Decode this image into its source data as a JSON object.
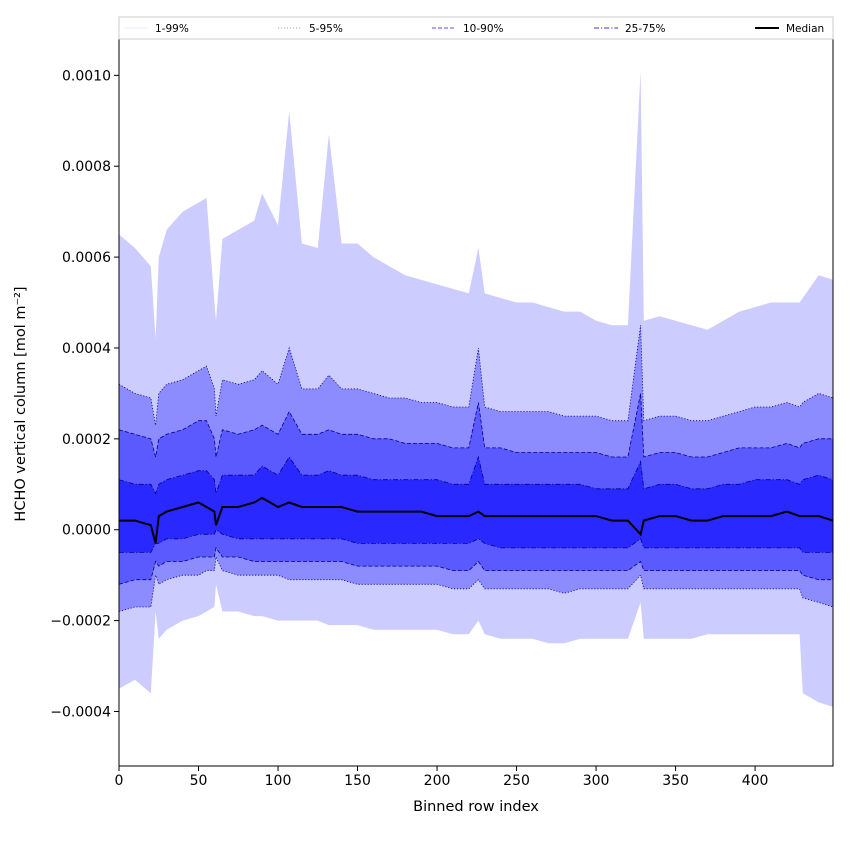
{
  "chart_data": {
    "type": "area",
    "xlabel": "Binned row index",
    "ylabel": "HCHO vertical column [mol m⁻²]",
    "xlim": [
      0,
      449
    ],
    "ylim": [
      -0.00052,
      0.00108
    ],
    "x_ticks": [
      0,
      50,
      100,
      150,
      200,
      250,
      300,
      350,
      400
    ],
    "x_tick_labels": [
      "0",
      "50",
      "100",
      "150",
      "200",
      "250",
      "300",
      "350",
      "400"
    ],
    "y_ticks": [
      -0.0004,
      -0.0002,
      0.0,
      0.0002,
      0.0004,
      0.0006,
      0.0008,
      0.001
    ],
    "y_tick_labels": [
      "−0.0004",
      "−0.0002",
      "0.0000",
      "0.0002",
      "0.0004",
      "0.0006",
      "0.0008",
      "0.0010"
    ],
    "legend_position": "top (above plot, spanning full width)",
    "colors": {
      "band_1_99": "#ccccff",
      "band_5_95": "#8c8cff",
      "band_10_90": "#5a5aff",
      "band_25_75": "#2828ff",
      "line_dark": "#00008b",
      "median": "#000000"
    },
    "x": [
      0,
      10,
      20,
      23,
      25,
      30,
      40,
      50,
      55,
      60,
      61,
      65,
      75,
      85,
      90,
      100,
      107,
      115,
      125,
      132,
      140,
      150,
      160,
      170,
      180,
      190,
      200,
      210,
      220,
      226,
      230,
      240,
      250,
      260,
      270,
      280,
      290,
      300,
      310,
      320,
      328,
      330,
      340,
      350,
      360,
      370,
      380,
      390,
      400,
      410,
      420,
      428,
      430,
      440,
      449
    ],
    "series": [
      {
        "name": "1-99%",
        "line": "none",
        "upper": [
          0.00065,
          0.00062,
          0.00058,
          0.00042,
          0.0006,
          0.00066,
          0.0007,
          0.00072,
          0.00073,
          0.0005,
          0.00046,
          0.00064,
          0.00066,
          0.00068,
          0.00074,
          0.00067,
          0.00092,
          0.00063,
          0.00062,
          0.00087,
          0.00063,
          0.00063,
          0.0006,
          0.00058,
          0.00056,
          0.00055,
          0.00054,
          0.00053,
          0.00052,
          0.00062,
          0.00052,
          0.00051,
          0.0005,
          0.0005,
          0.00049,
          0.00048,
          0.00048,
          0.00046,
          0.00045,
          0.00045,
          0.00101,
          0.00046,
          0.00047,
          0.00046,
          0.00045,
          0.00044,
          0.00046,
          0.00048,
          0.00049,
          0.0005,
          0.0005,
          0.0005,
          0.00051,
          0.00056,
          0.00055
        ],
        "lower": [
          -0.00035,
          -0.00033,
          -0.00036,
          -0.00018,
          -0.00024,
          -0.00022,
          -0.0002,
          -0.00019,
          -0.00018,
          -0.00017,
          -0.00012,
          -0.00018,
          -0.00018,
          -0.00019,
          -0.00019,
          -0.0002,
          -0.0002,
          -0.0002,
          -0.0002,
          -0.00021,
          -0.00021,
          -0.00021,
          -0.00022,
          -0.00022,
          -0.00022,
          -0.00022,
          -0.00022,
          -0.00023,
          -0.00023,
          -0.0002,
          -0.00023,
          -0.00024,
          -0.00024,
          -0.00024,
          -0.00025,
          -0.00025,
          -0.00024,
          -0.00024,
          -0.00024,
          -0.00024,
          -0.00016,
          -0.00024,
          -0.00024,
          -0.00024,
          -0.00024,
          -0.00023,
          -0.00023,
          -0.00023,
          -0.00023,
          -0.00023,
          -0.00023,
          -0.00023,
          -0.00036,
          -0.00038,
          -0.00039
        ]
      },
      {
        "name": "5-95%",
        "line": "dotted",
        "upper": [
          0.00032,
          0.0003,
          0.00029,
          0.00023,
          0.0003,
          0.00032,
          0.00033,
          0.00035,
          0.00036,
          0.00031,
          0.00025,
          0.00033,
          0.00032,
          0.00033,
          0.00035,
          0.00032,
          0.0004,
          0.00031,
          0.00031,
          0.00034,
          0.00031,
          0.00031,
          0.0003,
          0.00029,
          0.00029,
          0.00028,
          0.00028,
          0.00027,
          0.00027,
          0.0004,
          0.00027,
          0.00026,
          0.00026,
          0.00026,
          0.00026,
          0.00025,
          0.00025,
          0.00025,
          0.00024,
          0.00024,
          0.00045,
          0.00024,
          0.00025,
          0.00025,
          0.00024,
          0.00024,
          0.00025,
          0.00026,
          0.00027,
          0.00027,
          0.00028,
          0.00027,
          0.00028,
          0.0003,
          0.00029
        ],
        "lower": [
          -0.00018,
          -0.00017,
          -0.00017,
          -0.0001,
          -0.00012,
          -0.00011,
          -0.0001,
          -0.0001,
          -9e-05,
          -9e-05,
          -6e-05,
          -9e-05,
          -0.0001,
          -0.0001,
          -0.0001,
          -0.0001,
          -0.00011,
          -0.00011,
          -0.00011,
          -0.00011,
          -0.00011,
          -0.00012,
          -0.00012,
          -0.00012,
          -0.00012,
          -0.00012,
          -0.00012,
          -0.00013,
          -0.00013,
          -0.00011,
          -0.00013,
          -0.00013,
          -0.00013,
          -0.00013,
          -0.00013,
          -0.00014,
          -0.00013,
          -0.00013,
          -0.00013,
          -0.00013,
          -0.0001,
          -0.00013,
          -0.00013,
          -0.00013,
          -0.00013,
          -0.00013,
          -0.00013,
          -0.00013,
          -0.00013,
          -0.00013,
          -0.00013,
          -0.00013,
          -0.00015,
          -0.00016,
          -0.00017
        ]
      },
      {
        "name": "10-90%",
        "line": "dashed",
        "upper": [
          0.00022,
          0.00021,
          0.0002,
          0.00016,
          0.0002,
          0.00021,
          0.00022,
          0.00024,
          0.00024,
          0.0002,
          0.00016,
          0.00022,
          0.00021,
          0.00022,
          0.00023,
          0.00021,
          0.00026,
          0.00021,
          0.00021,
          0.00022,
          0.00021,
          0.00021,
          0.0002,
          0.0002,
          0.00019,
          0.00019,
          0.00019,
          0.00018,
          0.00018,
          0.00028,
          0.00018,
          0.00018,
          0.00017,
          0.00017,
          0.00017,
          0.00017,
          0.00017,
          0.00017,
          0.00016,
          0.00016,
          0.0003,
          0.00016,
          0.00017,
          0.00017,
          0.00016,
          0.00016,
          0.00017,
          0.00018,
          0.00018,
          0.00018,
          0.00019,
          0.00018,
          0.00019,
          0.0002,
          0.0002
        ],
        "lower": [
          -0.00012,
          -0.00011,
          -0.00011,
          -7e-05,
          -8e-05,
          -7e-05,
          -7e-05,
          -6e-05,
          -6e-05,
          -6e-05,
          -4e-05,
          -6e-05,
          -6e-05,
          -7e-05,
          -7e-05,
          -7e-05,
          -7e-05,
          -7e-05,
          -7e-05,
          -7e-05,
          -7e-05,
          -8e-05,
          -8e-05,
          -8e-05,
          -8e-05,
          -8e-05,
          -8e-05,
          -9e-05,
          -9e-05,
          -7e-05,
          -9e-05,
          -9e-05,
          -9e-05,
          -9e-05,
          -9e-05,
          -9e-05,
          -9e-05,
          -9e-05,
          -9e-05,
          -9e-05,
          -7e-05,
          -9e-05,
          -9e-05,
          -9e-05,
          -9e-05,
          -9e-05,
          -9e-05,
          -9e-05,
          -9e-05,
          -9e-05,
          -9e-05,
          -9e-05,
          -0.0001,
          -0.00011,
          -0.00011
        ]
      },
      {
        "name": "25-75%",
        "line": "dashdot",
        "upper": [
          0.00011,
          0.0001,
          0.0001,
          8e-05,
          0.0001,
          0.00011,
          0.00012,
          0.00013,
          0.00013,
          0.00011,
          8e-05,
          0.00012,
          0.00012,
          0.00012,
          0.00014,
          0.00012,
          0.00016,
          0.00012,
          0.00012,
          0.00013,
          0.00012,
          0.00012,
          0.00011,
          0.00011,
          0.00011,
          0.00011,
          0.00011,
          0.0001,
          0.0001,
          0.00016,
          0.0001,
          0.0001,
          0.0001,
          0.0001,
          0.0001,
          0.0001,
          0.0001,
          9e-05,
          9e-05,
          9e-05,
          0.00015,
          9e-05,
          0.0001,
          0.0001,
          9e-05,
          9e-05,
          0.0001,
          0.0001,
          0.00011,
          0.00011,
          0.00011,
          0.0001,
          0.00011,
          0.00012,
          0.00011
        ],
        "lower": [
          -5e-05,
          -5e-05,
          -5e-05,
          -3e-05,
          -3e-05,
          -2e-05,
          -2e-05,
          -1e-05,
          -1e-05,
          -1e-05,
          0.0,
          -1e-05,
          -2e-05,
          -2e-05,
          -2e-05,
          -2e-05,
          -2e-05,
          -2e-05,
          -2e-05,
          -2e-05,
          -2e-05,
          -3e-05,
          -3e-05,
          -3e-05,
          -3e-05,
          -3e-05,
          -3e-05,
          -3e-05,
          -3e-05,
          -2e-05,
          -3e-05,
          -4e-05,
          -4e-05,
          -4e-05,
          -4e-05,
          -4e-05,
          -4e-05,
          -4e-05,
          -4e-05,
          -4e-05,
          -2e-05,
          -4e-05,
          -4e-05,
          -4e-05,
          -4e-05,
          -4e-05,
          -4e-05,
          -4e-05,
          -4e-05,
          -4e-05,
          -4e-05,
          -4e-05,
          -5e-05,
          -5e-05,
          -5e-05
        ]
      },
      {
        "name": "Median",
        "line": "solid",
        "values": [
          2e-05,
          2e-05,
          1e-05,
          -3e-05,
          3e-05,
          4e-05,
          5e-05,
          6e-05,
          5e-05,
          4e-05,
          1e-05,
          5e-05,
          5e-05,
          6e-05,
          7e-05,
          5e-05,
          6e-05,
          5e-05,
          5e-05,
          5e-05,
          5e-05,
          4e-05,
          4e-05,
          4e-05,
          4e-05,
          4e-05,
          3e-05,
          3e-05,
          3e-05,
          4e-05,
          3e-05,
          3e-05,
          3e-05,
          3e-05,
          3e-05,
          3e-05,
          3e-05,
          3e-05,
          2e-05,
          2e-05,
          -1e-05,
          2e-05,
          3e-05,
          3e-05,
          2e-05,
          2e-05,
          3e-05,
          3e-05,
          3e-05,
          3e-05,
          4e-05,
          3e-05,
          3e-05,
          3e-05,
          2e-05
        ]
      }
    ]
  }
}
